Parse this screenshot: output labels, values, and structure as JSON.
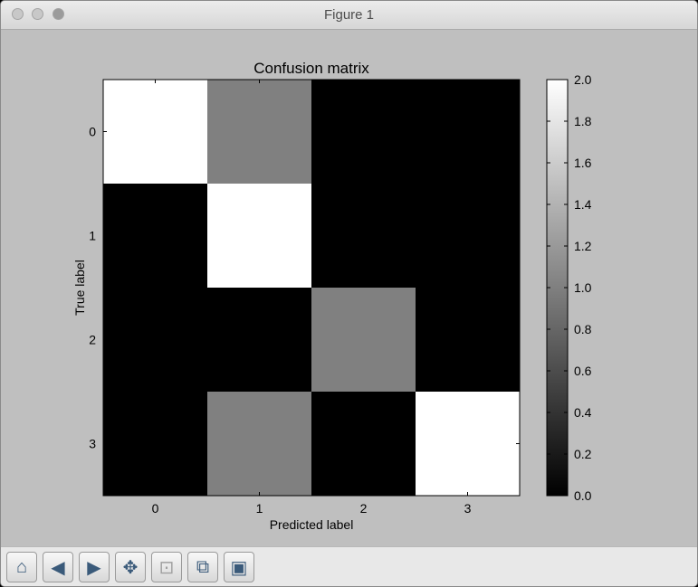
{
  "window": {
    "title": "Figure 1"
  },
  "toolbar": {
    "buttons": [
      {
        "name": "home-icon",
        "glyph": "⌂"
      },
      {
        "name": "back-icon",
        "glyph": "◀"
      },
      {
        "name": "forward-icon",
        "glyph": "▶"
      },
      {
        "name": "pan-icon",
        "glyph": "✥"
      },
      {
        "name": "zoom-icon",
        "glyph": "⊡"
      },
      {
        "name": "subplots-icon",
        "glyph": "⧉"
      },
      {
        "name": "save-icon",
        "glyph": "▣"
      }
    ]
  },
  "chart_data": {
    "type": "heatmap",
    "title": "Confusion matrix",
    "xlabel": "Predicted label",
    "ylabel": "True label",
    "x_categories": [
      "0",
      "1",
      "2",
      "3"
    ],
    "y_categories": [
      "0",
      "1",
      "2",
      "3"
    ],
    "values": [
      [
        2,
        1,
        0,
        0
      ],
      [
        0,
        2,
        0,
        0
      ],
      [
        0,
        0,
        1,
        0
      ],
      [
        0,
        1,
        0,
        2
      ]
    ],
    "colormap": "gray",
    "vmin": 0,
    "vmax": 2,
    "colorbar_ticks": [
      "0.0",
      "0.2",
      "0.4",
      "0.6",
      "0.8",
      "1.0",
      "1.2",
      "1.4",
      "1.6",
      "1.8",
      "2.0"
    ]
  }
}
